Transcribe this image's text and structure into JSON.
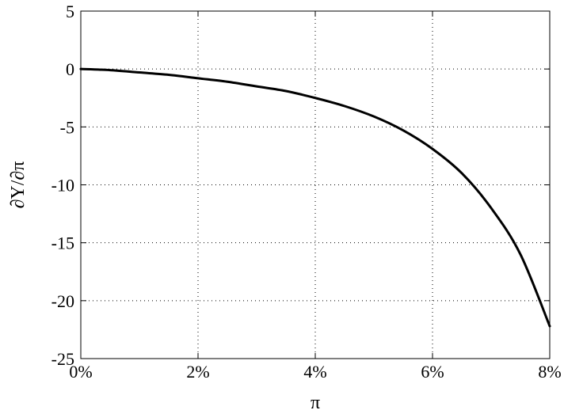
{
  "chart_data": {
    "type": "line",
    "title": "",
    "xlabel": "π",
    "ylabel": "∂Y/∂π",
    "xlim": [
      0,
      8
    ],
    "ylim": [
      -25,
      5
    ],
    "grid": true,
    "x_ticks": [
      0,
      2,
      4,
      6,
      8
    ],
    "x_tick_labels": [
      "0%",
      "2%",
      "4%",
      "6%",
      "8%"
    ],
    "y_ticks": [
      5,
      0,
      -5,
      -10,
      -15,
      -20,
      -25
    ],
    "y_tick_labels": [
      "5",
      "0",
      "-5",
      "-10",
      "-15",
      "-20",
      "-25"
    ],
    "series": [
      {
        "color": "#000000",
        "x": [
          0,
          0.5,
          1,
          1.5,
          2,
          2.5,
          3,
          3.5,
          4,
          4.5,
          5,
          5.5,
          6,
          6.5,
          7,
          7.5,
          8
        ],
        "y": [
          0,
          -0.1,
          -0.3,
          -0.5,
          -0.8,
          -1.1,
          -1.5,
          -1.9,
          -2.5,
          -3.2,
          -4.1,
          -5.3,
          -6.9,
          -9.0,
          -12.0,
          -16.0,
          -22.2
        ]
      }
    ]
  }
}
